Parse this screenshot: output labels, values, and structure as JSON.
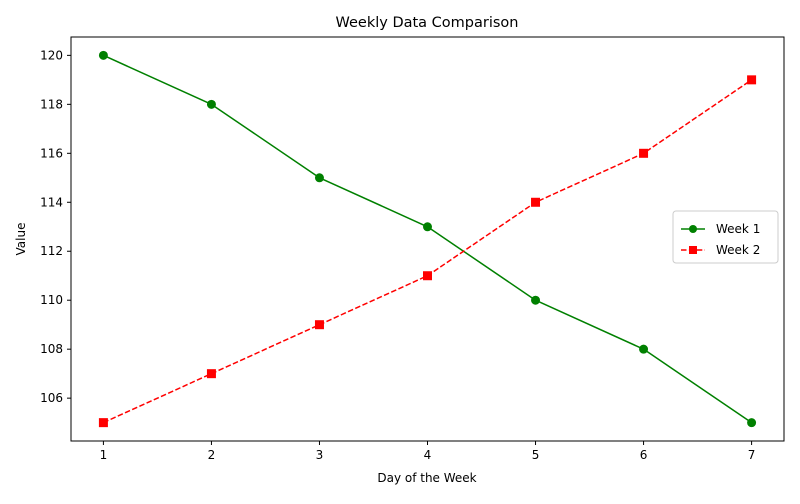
{
  "chart_data": {
    "type": "line",
    "title": "Weekly Data Comparison",
    "xlabel": "Day of the Week",
    "ylabel": "Value",
    "x": [
      1,
      2,
      3,
      4,
      5,
      6,
      7
    ],
    "xlim": [
      0.7,
      7.3
    ],
    "ylim": [
      104.25,
      120.75
    ],
    "xticks": [
      1,
      2,
      3,
      4,
      5,
      6,
      7
    ],
    "yticks": [
      106,
      108,
      110,
      112,
      114,
      116,
      118,
      120
    ],
    "grid": false,
    "legend_position": "center-right",
    "series": [
      {
        "name": "Week 1",
        "values": [
          120,
          118,
          115,
          113,
          110,
          108,
          105
        ],
        "color": "#008000",
        "line_style": "solid",
        "marker": "circle"
      },
      {
        "name": "Week 2",
        "values": [
          105,
          107,
          109,
          111,
          114,
          116,
          119
        ],
        "color": "#ff0000",
        "line_style": "dashed",
        "marker": "square"
      }
    ]
  }
}
